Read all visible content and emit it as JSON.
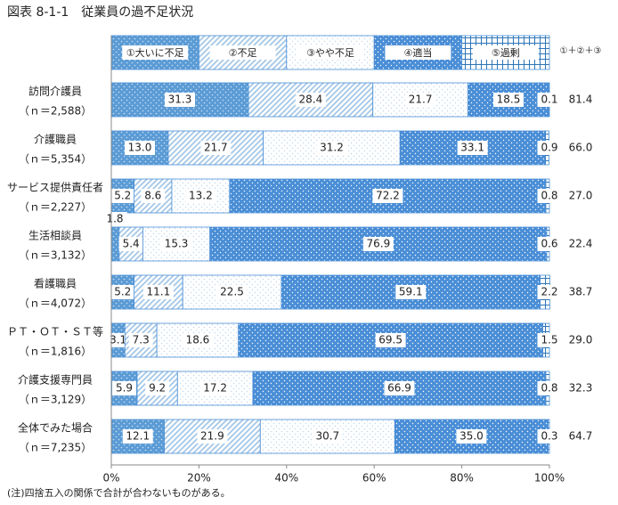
{
  "chart_data": {
    "type": "stacked-bar",
    "title": "図表 8-1-1　従業員の過不足状況",
    "note": "(注)四捨五入の関係で合計が合わないものがある。",
    "categories": [
      "訪問介護員",
      "介護職員",
      "サービス提供責任者",
      "生活相談員",
      "看護職員",
      "ＰＴ・ＯＴ・ＳＴ等",
      "介護支援専門員",
      "全体でみた場合"
    ],
    "sample_sizes": [
      "（ｎ＝2,588）",
      "（ｎ＝5,354）",
      "（ｎ＝2,227）",
      "（ｎ＝3,132）",
      "（ｎ＝4,072）",
      "（ｎ＝1,816）",
      "（ｎ＝3,129）",
      "（ｎ＝7,235）"
    ],
    "series": [
      {
        "name": "①大いに不足",
        "color": "#5b9bd5",
        "values": [
          31.3,
          13.0,
          5.2,
          1.8,
          5.2,
          3.1,
          5.9,
          12.1
        ],
        "value_labels": [
          "31.3",
          "13.0",
          "5.2",
          "1.8",
          "5.2",
          "3.1",
          "5.9",
          "12.1"
        ]
      },
      {
        "name": "②不足",
        "color": "#9dc3e6",
        "values": [
          28.4,
          21.7,
          8.6,
          5.4,
          11.1,
          7.3,
          9.2,
          21.9
        ],
        "value_labels": [
          "28.4",
          "21.7",
          "8.6",
          "5.4",
          "11.1",
          "7.3",
          "9.2",
          "21.9"
        ]
      },
      {
        "name": "③やや不足",
        "color": "#bdd7ee",
        "values": [
          21.7,
          31.2,
          13.2,
          15.3,
          22.5,
          18.6,
          17.2,
          30.7
        ],
        "value_labels": [
          "21.7",
          "31.2",
          "13.2",
          "15.3",
          "22.5",
          "18.6",
          "17.2",
          "30.7"
        ]
      },
      {
        "name": "④適当",
        "color": "#4a8ed6",
        "values": [
          18.5,
          33.1,
          72.2,
          76.9,
          59.1,
          69.5,
          66.9,
          35.0
        ],
        "value_labels": [
          "18.5",
          "33.1",
          "72.2",
          "76.9",
          "59.1",
          "69.5",
          "66.9",
          "35.0"
        ]
      },
      {
        "name": "⑤過剰",
        "color": "#2e75b6",
        "values": [
          0.1,
          0.9,
          0.8,
          0.6,
          2.2,
          1.5,
          0.8,
          0.3
        ],
        "value_labels": [
          "0.1",
          "0.9",
          "0.8",
          "0.6",
          "2.2",
          "1.5",
          "0.8",
          "0.3"
        ]
      }
    ],
    "totals": {
      "name": "①＋②＋③",
      "values": [
        81.4,
        66.0,
        27.0,
        22.4,
        38.7,
        29.0,
        32.3,
        64.7
      ],
      "value_labels": [
        "81.4",
        "66.0",
        "27.0",
        "22.4",
        "38.7",
        "29.0",
        "32.3",
        "64.7"
      ]
    },
    "xlim": [
      0,
      100
    ],
    "xticks": [
      {
        "value": 0,
        "label": "0%"
      },
      {
        "value": 20,
        "label": "20%"
      },
      {
        "value": 40,
        "label": "40%"
      },
      {
        "value": 60,
        "label": "60%"
      },
      {
        "value": 80,
        "label": "80%"
      },
      {
        "value": 100,
        "label": "100%"
      }
    ]
  }
}
